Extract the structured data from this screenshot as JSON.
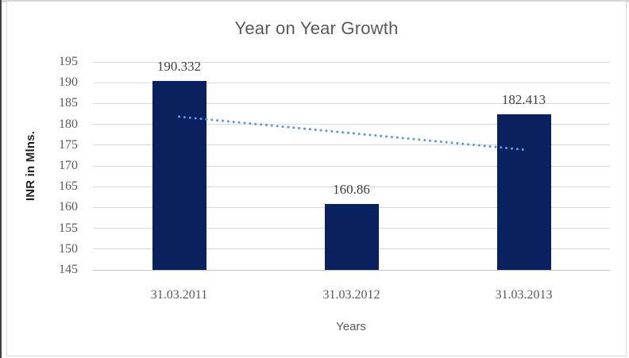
{
  "frame": {
    "top_strip_color": "#d6d6d6",
    "left_edge_color": "#3f3f3f",
    "border_color": "#d9d9d9"
  },
  "chart_data": {
    "type": "bar",
    "title": "Year on Year Growth",
    "categories": [
      "31.03.2011",
      "31.03.2012",
      "31.03.2013"
    ],
    "values": [
      190.332,
      160.86,
      182.413
    ],
    "data_labels": [
      "190.332",
      "160.86",
      "182.413"
    ],
    "xlabel": "Years",
    "ylabel": "INR in Mlns.",
    "ylim": [
      145,
      195
    ],
    "ytick_step": 5,
    "yticks": [
      195,
      190,
      185,
      180,
      175,
      170,
      165,
      160,
      155,
      150,
      145
    ],
    "grid": true,
    "legend": "none",
    "bar_color": "#0a2160",
    "trendline": {
      "type": "linear",
      "style": "dotted",
      "color": "#5b9bd5"
    },
    "colors": {
      "gridline": "#d9d9d9",
      "axis_line": "#c3c3c3",
      "tick_label": "#595959",
      "data_label": "#3f3f3f",
      "title": "#595959",
      "axis_title": "#595959",
      "ylabel_text": "#1f1f1f"
    }
  }
}
